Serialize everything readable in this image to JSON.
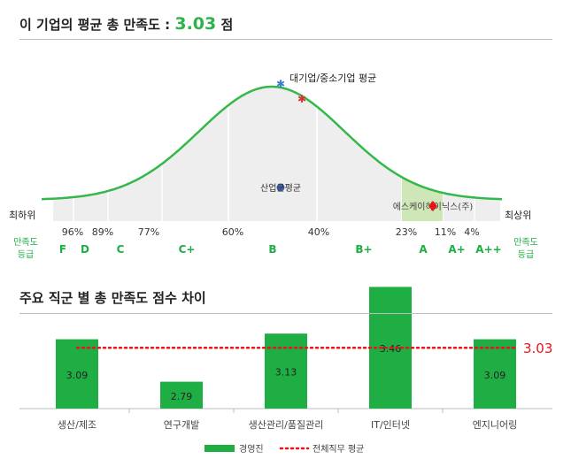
{
  "curve_section": {
    "title": "이 기업의 평균 총 만족도 :",
    "score": "3.03",
    "score_unit": "점",
    "industry_avg_label": "대기업/중소기업 평균",
    "industry_group_label": "산업군평균",
    "company_label": "에스케이하이닉스(주)",
    "lowest_label": "최하위",
    "highest_label": "최상위",
    "grade_label": "만족도 등급",
    "percentiles": [
      "96%",
      "89%",
      "77%",
      "60%",
      "40%",
      "23%",
      "11%",
      "4%"
    ],
    "grades": [
      "F",
      "D",
      "C",
      "C+",
      "B",
      "B+",
      "A",
      "A+",
      "A++"
    ]
  },
  "bar_section": {
    "title": "주요 직군 별 총 만족도 점수 차이"
  },
  "chart_data": {
    "type": "bar",
    "title": "주요 직군 별 총 만족도 점수 차이",
    "categories": [
      "생산/제조",
      "연구개발",
      "생산관리/품질관리",
      "IT/인터넷",
      "엔지니어링"
    ],
    "series": [
      {
        "name": "경영진",
        "values": [
          3.09,
          2.79,
          3.13,
          3.46,
          3.09
        ]
      }
    ],
    "reference_line": {
      "name": "전체직무 평균",
      "value": 3.03,
      "label": "3.03"
    },
    "ylim": [
      2.6,
      3.5
    ],
    "legend_position": "bottom",
    "colors": {
      "bar": "#1fae44",
      "reference": "#e8141c",
      "accent": "#2db34a"
    }
  }
}
